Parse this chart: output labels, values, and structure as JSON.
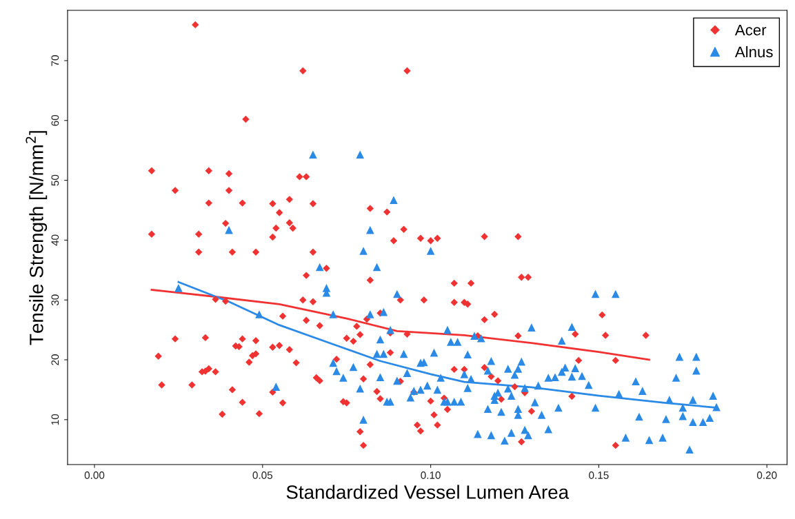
{
  "chart_data": {
    "type": "scatter",
    "xlabel": "Standardized Vessel Lumen Area",
    "ylabel": "Tensile Strength [N/mm$^{2}$]",
    "xlim": [
      -0.008,
      0.206
    ],
    "ylim": [
      2.5,
      78.4
    ],
    "xticks": [
      {
        "value": 0,
        "label": "0.00"
      },
      {
        "value": 0.05,
        "label": "0.05"
      },
      {
        "value": 0.1,
        "label": "0.10"
      },
      {
        "value": 0.15,
        "label": "0.15"
      },
      {
        "value": 0.2,
        "label": "0.20"
      }
    ],
    "yticks": [
      10,
      20,
      30,
      40,
      50,
      60,
      70
    ],
    "grid": false,
    "legend": "top right",
    "series": [
      {
        "name": "Acer",
        "color": "#f03232",
        "marker": "diamond",
        "x": [
          0.03,
          0.062,
          0.093,
          0.045,
          0.017,
          0.034,
          0.024,
          0.04,
          0.04,
          0.034,
          0.044,
          0.053,
          0.061,
          0.063,
          0.058,
          0.065,
          0.087,
          0.082,
          0.017,
          0.031,
          0.039,
          0.055,
          0.053,
          0.054,
          0.058,
          0.059,
          0.092,
          0.031,
          0.041,
          0.048,
          0.065,
          0.089,
          0.097,
          0.1,
          0.102,
          0.116,
          0.126,
          0.082,
          0.107,
          0.112,
          0.127,
          0.129,
          0.063,
          0.062,
          0.065,
          0.098,
          0.091,
          0.111,
          0.11,
          0.107,
          0.069,
          0.039,
          0.036,
          0.056,
          0.119,
          0.151,
          0.116,
          0.063,
          0.067,
          0.078,
          0.079,
          0.088,
          0.093,
          0.085,
          0.143,
          0.152,
          0.164,
          0.126,
          0.024,
          0.033,
          0.044,
          0.048,
          0.042,
          0.043,
          0.053,
          0.055,
          0.058,
          0.048,
          0.047,
          0.046,
          0.036,
          0.032,
          0.034,
          0.033,
          0.019,
          0.02,
          0.029,
          0.041,
          0.053,
          0.056,
          0.044,
          0.038,
          0.049,
          0.06,
          0.066,
          0.067,
          0.072,
          0.075,
          0.077,
          0.08,
          0.082,
          0.084,
          0.085,
          0.088,
          0.091,
          0.095,
          0.096,
          0.097,
          0.099,
          0.1,
          0.101,
          0.102,
          0.105,
          0.104,
          0.107,
          0.11,
          0.116,
          0.118,
          0.114,
          0.12,
          0.121,
          0.125,
          0.127,
          0.128,
          0.13,
          0.142,
          0.144,
          0.155,
          0.155,
          0.074,
          0.075,
          0.079,
          0.08,
          0.081
        ],
        "values": [
          76,
          68.3,
          68.3,
          60.2,
          51.6,
          51.6,
          48.3,
          51.1,
          48.3,
          46.2,
          46.2,
          46.1,
          50.6,
          50.6,
          46.8,
          46.1,
          44.7,
          45.3,
          41.0,
          41.0,
          42.8,
          44.6,
          40.5,
          42,
          42.9,
          42.0,
          41.8,
          38,
          38,
          38,
          38,
          39.9,
          40.3,
          39.9,
          40.3,
          40.6,
          40.6,
          33.3,
          32.8,
          32.8,
          33.8,
          33.8,
          34.1,
          30,
          29.7,
          30,
          30,
          29.3,
          29.6,
          29.6,
          35.3,
          29.8,
          30.1,
          27.3,
          27.6,
          27.5,
          26.7,
          26.6,
          25.7,
          25.6,
          24.2,
          24.5,
          24.3,
          27.8,
          24.3,
          24.1,
          24.1,
          24.0,
          23.5,
          23.7,
          23.5,
          23.2,
          22.3,
          22.2,
          22.1,
          22.4,
          21.7,
          21,
          20.7,
          19.6,
          18,
          18,
          18.5,
          18.1,
          20.6,
          15.8,
          15.8,
          15,
          14.6,
          12.8,
          12.9,
          10.9,
          11,
          19.5,
          17,
          16.5,
          20.1,
          23.6,
          23.1,
          16.8,
          19.2,
          14.7,
          13.5,
          21.2,
          16.4,
          14.6,
          9.1,
          8.1,
          null,
          13.1,
          10.8,
          9.1,
          11.7,
          13.6,
          18.4,
          18.4,
          18.7,
          17.2,
          24,
          16.5,
          13.4,
          15.5,
          6.3,
          14.5,
          11.4,
          13.9,
          19.9,
          19.9,
          5.7,
          13,
          12.8,
          8,
          5.7,
          26.8
        ]
      },
      {
        "name": "Alnus",
        "color": "#2a8ae6",
        "marker": "triangle",
        "x": [
          0.025,
          0.04,
          0.049,
          0.054,
          0.065,
          0.079,
          0.089,
          0.067,
          0.069,
          0.069,
          0.071,
          0.071,
          0.072,
          0.074,
          0.077,
          0.079,
          0.08,
          0.08,
          0.082,
          0.082,
          0.084,
          0.084,
          0.085,
          0.085,
          0.086,
          0.086,
          0.088,
          0.088,
          0.09,
          0.09,
          0.092,
          0.093,
          0.094,
          0.095,
          0.097,
          0.097,
          0.098,
          0.099,
          0.1,
          0.101,
          0.102,
          0.103,
          0.104,
          0.105,
          0.105,
          0.106,
          0.107,
          0.108,
          0.109,
          0.11,
          0.111,
          0.111,
          0.112,
          0.113,
          0.114,
          0.115,
          0.117,
          0.117,
          0.118,
          0.118,
          0.119,
          0.119,
          0.12,
          0.121,
          0.122,
          0.123,
          0.123,
          0.124,
          0.124,
          0.125,
          0.126,
          0.126,
          0.126,
          0.127,
          0.128,
          0.128,
          0.129,
          0.13,
          0.131,
          0.132,
          0.133,
          0.135,
          0.135,
          0.137,
          0.138,
          0.139,
          0.139,
          0.14,
          0.142,
          0.142,
          0.143,
          0.145,
          0.147,
          0.149,
          0.149,
          0.155,
          0.156,
          0.158,
          0.161,
          0.162,
          0.163,
          0.165,
          0.169,
          0.17,
          0.171,
          0.173,
          0.174,
          0.175,
          0.175,
          0.177,
          0.178,
          0.178,
          0.179,
          0.179,
          0.181,
          0.183,
          0.184,
          0.185,
          0.087
        ],
        "values": [
          32,
          41.7,
          27.6,
          15.5,
          54.3,
          54.3,
          46.7,
          35.5,
          31.2,
          32,
          27.6,
          19.5,
          18.1,
          17,
          18.8,
          15.2,
          10,
          38.2,
          41.7,
          27.6,
          35.5,
          21,
          17.1,
          23.4,
          21,
          28,
          25,
          13,
          31,
          16.5,
          21,
          17.8,
          13.7,
          14.8,
          19.5,
          15,
          19.6,
          15.7,
          38.2,
          21.2,
          15,
          17,
          13,
          13,
          25,
          23,
          13,
          23,
          13,
          17.6,
          20.9,
          15.3,
          16.8,
          24,
          7.6,
          23.6,
          11.8,
          18.2,
          7.4,
          19.8,
          14,
          13.3,
          14.5,
          11.3,
          6.5,
          15.2,
          18.5,
          14,
          7.8,
          17.5,
          18.5,
          11.8,
          10.8,
          19.7,
          15.3,
          8.3,
          7.4,
          25.4,
          12.9,
          15.7,
          10.8,
          17,
          8.4,
          17.1,
          12,
          23.2,
          18,
          18.7,
          17.2,
          25.5,
          18.6,
          17.3,
          15.8,
          31,
          12,
          31,
          14.3,
          7,
          16.4,
          10.5,
          14.8,
          6.6,
          7,
          10.1,
          13.3,
          17,
          20.5,
          10.6,
          12,
          5,
          13.3,
          9.6,
          18.2,
          20.5,
          9.6,
          10.3,
          14,
          12.1,
          13
        ]
      },
      {
        "type": "line",
        "color": "#f03232",
        "x": [
          0.017,
          0.035,
          0.055,
          0.075,
          0.09,
          0.11,
          0.13,
          0.15,
          0.165
        ],
        "values": [
          31.7,
          30.6,
          29.3,
          26.9,
          24.8,
          24.1,
          22.8,
          21.3,
          20
        ]
      },
      {
        "type": "line",
        "color": "#2a8ae6",
        "x": [
          0.025,
          0.04,
          0.055,
          0.07,
          0.085,
          0.1,
          0.11,
          0.13,
          0.15,
          0.17,
          0.185
        ],
        "values": [
          33,
          29.7,
          25.8,
          22.8,
          19.8,
          17.6,
          16.3,
          15.4,
          14,
          12.8,
          12
        ]
      }
    ]
  }
}
